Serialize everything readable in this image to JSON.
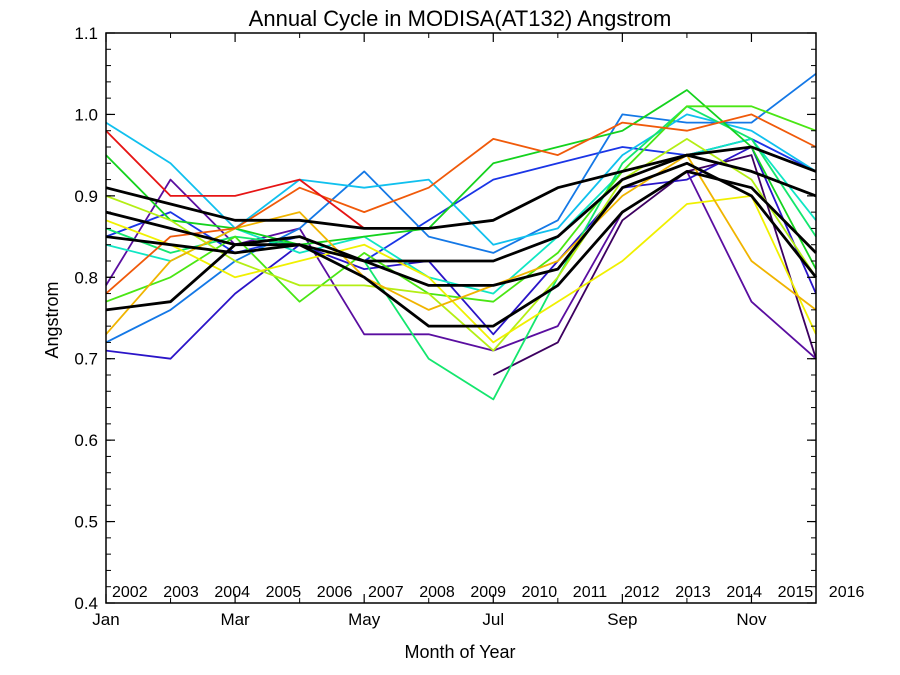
{
  "chart_data": {
    "type": "line",
    "title": "Annual Cycle in MODISA(AT132) Angstrom",
    "xlabel": "Month of Year",
    "ylabel": "Angstrom",
    "xlim": [
      1,
      12
    ],
    "ylim": [
      0.4,
      1.1
    ],
    "x_ticks": [
      {
        "value": 1,
        "label": "Jan"
      },
      {
        "value": 3,
        "label": "Mar"
      },
      {
        "value": 5,
        "label": "May"
      },
      {
        "value": 7,
        "label": "Jul"
      },
      {
        "value": 9,
        "label": "Sep"
      },
      {
        "value": 11,
        "label": "Nov"
      }
    ],
    "y_ticks": [
      {
        "value": 0.4,
        "label": "0.4"
      },
      {
        "value": 0.5,
        "label": "0.5"
      },
      {
        "value": 0.6,
        "label": "0.6"
      },
      {
        "value": 0.7,
        "label": "0.7"
      },
      {
        "value": 0.8,
        "label": "0.8"
      },
      {
        "value": 0.9,
        "label": "0.9"
      },
      {
        "value": 1.0,
        "label": "1.0"
      },
      {
        "value": 1.1,
        "label": "1.1"
      }
    ],
    "grid": false,
    "legend_position": "bottom",
    "x": [
      1,
      2,
      3,
      4,
      5,
      6,
      7,
      8,
      9,
      10,
      11,
      12
    ],
    "series": [
      {
        "name": "2002",
        "color": "#3d0060",
        "values": [
          null,
          null,
          null,
          null,
          null,
          null,
          0.68,
          0.72,
          0.87,
          0.93,
          0.95,
          0.7
        ]
      },
      {
        "name": "2003",
        "color": "#5a0ea0",
        "values": [
          0.79,
          0.92,
          0.84,
          0.86,
          0.73,
          0.73,
          0.71,
          0.74,
          0.88,
          0.93,
          0.77,
          0.7
        ]
      },
      {
        "name": "2004",
        "color": "#2a14c8",
        "values": [
          0.71,
          0.7,
          0.78,
          0.84,
          0.81,
          0.82,
          0.73,
          0.82,
          0.91,
          0.92,
          0.96,
          0.78
        ]
      },
      {
        "name": "2005",
        "color": "#1a35e6",
        "values": [
          0.85,
          0.88,
          0.83,
          0.85,
          0.82,
          0.87,
          0.92,
          0.94,
          0.96,
          0.95,
          0.97,
          0.93
        ]
      },
      {
        "name": "2006",
        "color": "#1478e6",
        "values": [
          0.72,
          0.76,
          0.82,
          0.86,
          0.93,
          0.85,
          0.83,
          0.87,
          1.0,
          0.99,
          0.99,
          1.05
        ]
      },
      {
        "name": "2007",
        "color": "#10c0ee",
        "values": [
          0.99,
          0.94,
          0.86,
          0.92,
          0.91,
          0.92,
          0.84,
          0.86,
          0.95,
          1.0,
          0.98,
          0.93
        ]
      },
      {
        "name": "2008",
        "color": "#10e6c4",
        "values": [
          0.84,
          0.82,
          0.86,
          0.83,
          0.85,
          0.8,
          0.78,
          0.85,
          0.93,
          0.95,
          0.97,
          0.87
        ]
      },
      {
        "name": "2009",
        "color": "#14e66e",
        "values": [
          0.86,
          0.83,
          0.85,
          0.84,
          0.82,
          0.7,
          0.65,
          0.8,
          0.94,
          1.01,
          0.97,
          0.85
        ]
      },
      {
        "name": "2010",
        "color": "#14d21e",
        "values": [
          0.95,
          0.87,
          0.86,
          0.84,
          0.85,
          0.86,
          0.94,
          0.96,
          0.98,
          1.03,
          0.96,
          0.81
        ]
      },
      {
        "name": "2011",
        "color": "#4ae614",
        "values": [
          0.77,
          0.8,
          0.85,
          0.77,
          0.83,
          0.78,
          0.77,
          0.83,
          0.93,
          1.01,
          1.01,
          0.98
        ]
      },
      {
        "name": "2012",
        "color": "#b4ee14",
        "values": [
          0.9,
          0.87,
          0.82,
          0.79,
          0.79,
          0.78,
          0.71,
          0.8,
          0.92,
          0.97,
          0.92,
          0.8
        ]
      },
      {
        "name": "2013",
        "color": "#f0f000",
        "values": [
          0.87,
          0.84,
          0.8,
          0.82,
          0.84,
          0.8,
          0.72,
          0.77,
          0.82,
          0.89,
          0.9,
          0.73
        ]
      },
      {
        "name": "2014",
        "color": "#f0b400",
        "values": [
          0.73,
          0.82,
          0.86,
          0.88,
          0.8,
          0.76,
          0.79,
          0.82,
          0.9,
          0.95,
          0.82,
          0.76
        ]
      },
      {
        "name": "2015",
        "color": "#f05a0a",
        "values": [
          0.78,
          0.85,
          0.86,
          0.91,
          0.88,
          0.91,
          0.97,
          0.95,
          0.99,
          0.98,
          1.0,
          0.96
        ]
      },
      {
        "name": "2016",
        "color": "#e61414",
        "values": [
          0.98,
          0.9,
          0.9,
          0.92,
          0.86,
          0.86,
          0.87,
          null,
          null,
          null,
          null,
          null
        ]
      }
    ],
    "reference_lines": [
      {
        "color": "#000000",
        "values": [
          0.91,
          0.89,
          0.87,
          0.87,
          0.86,
          0.86,
          0.87,
          0.91,
          0.93,
          0.95,
          0.96,
          0.93
        ]
      },
      {
        "color": "#000000",
        "values": [
          0.85,
          0.84,
          0.83,
          0.84,
          0.82,
          0.82,
          0.82,
          0.85,
          0.92,
          0.95,
          0.93,
          0.9
        ]
      },
      {
        "color": "#000000",
        "values": [
          0.76,
          0.77,
          0.84,
          0.85,
          0.82,
          0.79,
          0.79,
          0.81,
          0.91,
          0.94,
          0.9,
          0.8
        ]
      },
      {
        "color": "#000000",
        "values": [
          0.88,
          0.86,
          0.84,
          0.84,
          0.8,
          0.74,
          0.74,
          0.79,
          0.88,
          0.93,
          0.91,
          0.83
        ]
      }
    ]
  }
}
